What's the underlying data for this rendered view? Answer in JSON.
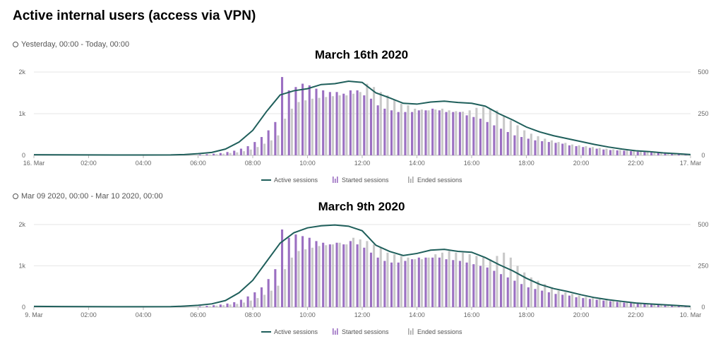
{
  "title": "Active internal users (access via VPN)",
  "legend": {
    "active": "Active sessions",
    "started": "Started sessions",
    "ended": "Ended sessions"
  },
  "colors": {
    "active": "#1f5f5b",
    "started": "#9b6fc2",
    "ended": "#c9c9c9",
    "grid": "#e6e6e6"
  },
  "chart_data": [
    {
      "type": "bar",
      "range_label": "Yesterday, 00:00 - Today, 00:00",
      "title": "March 16th 2020",
      "x_ticks": [
        "16. Mar",
        "02:00",
        "04:00",
        "06:00",
        "08:00",
        "10:00",
        "12:00",
        "14:00",
        "16:00",
        "18:00",
        "20:00",
        "22:00",
        "17. Mar"
      ],
      "y_left_ticks": [
        "0",
        "1k",
        "2k"
      ],
      "y_right_ticks": [
        "0",
        "250",
        "500"
      ],
      "ylim_left": [
        0,
        2000
      ],
      "ylim_right": [
        0,
        500
      ],
      "hours": [
        6,
        6.25,
        6.5,
        6.75,
        7,
        7.25,
        7.5,
        7.75,
        8,
        8.25,
        8.5,
        8.75,
        9,
        9.25,
        9.5,
        9.75,
        10,
        10.25,
        10.5,
        10.75,
        11,
        11.25,
        11.5,
        11.75,
        12,
        12.25,
        12.5,
        12.75,
        13,
        13.25,
        13.5,
        13.75,
        14,
        14.25,
        14.5,
        14.75,
        15,
        15.25,
        15.5,
        15.75,
        16,
        16.25,
        16.5,
        16.75,
        17,
        17.25,
        17.5,
        17.75,
        18,
        18.25,
        18.5,
        18.75,
        19,
        19.25,
        19.5,
        19.75,
        20,
        20.25,
        20.5,
        20.75,
        21,
        21.25,
        21.5,
        21.75,
        22,
        22.25,
        22.5,
        22.75,
        23,
        23.25,
        23.5,
        23.75
      ],
      "series": [
        {
          "name": "Active sessions",
          "axis": "left",
          "x": [
            0,
            1,
            2,
            3,
            4,
            5,
            5.5,
            6,
            6.5,
            7,
            7.5,
            8,
            8.5,
            9,
            9.5,
            10,
            10.5,
            11,
            11.5,
            12,
            12.5,
            13,
            13.5,
            14,
            14.5,
            15,
            15.5,
            16,
            16.5,
            17,
            17.5,
            18,
            18.5,
            19,
            19.5,
            20,
            20.5,
            21,
            21.5,
            22,
            22.5,
            23,
            23.5,
            24
          ],
          "values": [
            15,
            12,
            10,
            8,
            8,
            10,
            20,
            40,
            70,
            150,
            320,
            600,
            1050,
            1450,
            1550,
            1600,
            1700,
            1720,
            1780,
            1750,
            1500,
            1380,
            1250,
            1230,
            1280,
            1300,
            1270,
            1250,
            1180,
            1000,
            850,
            680,
            560,
            470,
            400,
            330,
            260,
            200,
            150,
            110,
            90,
            60,
            40,
            20
          ]
        },
        {
          "name": "Started sessions",
          "axis": "right",
          "values": [
            5,
            7,
            10,
            14,
            20,
            28,
            40,
            55,
            80,
            110,
            150,
            200,
            470,
            390,
            410,
            430,
            420,
            400,
            390,
            380,
            380,
            370,
            390,
            390,
            360,
            340,
            300,
            280,
            270,
            260,
            260,
            260,
            270,
            270,
            280,
            270,
            260,
            260,
            260,
            240,
            230,
            220,
            200,
            180,
            160,
            140,
            120,
            110,
            100,
            90,
            85,
            80,
            75,
            70,
            60,
            55,
            50,
            45,
            40,
            35,
            32,
            30,
            28,
            25,
            22,
            20,
            18,
            16,
            14,
            12,
            10,
            8
          ]
        },
        {
          "name": "Ended sessions",
          "axis": "right",
          "values": [
            4,
            5,
            7,
            10,
            14,
            18,
            25,
            35,
            50,
            70,
            90,
            120,
            220,
            280,
            320,
            330,
            340,
            345,
            350,
            355,
            360,
            360,
            370,
            380,
            430,
            410,
            380,
            360,
            330,
            310,
            300,
            280,
            275,
            270,
            275,
            280,
            270,
            265,
            262,
            270,
            285,
            290,
            280,
            270,
            240,
            210,
            180,
            150,
            130,
            115,
            100,
            90,
            80,
            75,
            65,
            60,
            55,
            50,
            45,
            40,
            36,
            32,
            30,
            27,
            24,
            21,
            19,
            17,
            15,
            13,
            11,
            9
          ]
        }
      ]
    },
    {
      "type": "bar",
      "range_label": "Mar 09 2020, 00:00 - Mar 10 2020, 00:00",
      "title": "March 9th 2020",
      "x_ticks": [
        "9. Mar",
        "02:00",
        "04:00",
        "06:00",
        "08:00",
        "10:00",
        "12:00",
        "14:00",
        "16:00",
        "18:00",
        "20:00",
        "22:00",
        "10. Mar"
      ],
      "y_left_ticks": [
        "0",
        "1k",
        "2k"
      ],
      "y_right_ticks": [
        "0",
        "250",
        "500"
      ],
      "ylim_left": [
        0,
        2000
      ],
      "ylim_right": [
        0,
        500
      ],
      "hours": [
        6,
        6.25,
        6.5,
        6.75,
        7,
        7.25,
        7.5,
        7.75,
        8,
        8.25,
        8.5,
        8.75,
        9,
        9.25,
        9.5,
        9.75,
        10,
        10.25,
        10.5,
        10.75,
        11,
        11.25,
        11.5,
        11.75,
        12,
        12.25,
        12.5,
        12.75,
        13,
        13.25,
        13.5,
        13.75,
        14,
        14.25,
        14.5,
        14.75,
        15,
        15.25,
        15.5,
        15.75,
        16,
        16.25,
        16.5,
        16.75,
        17,
        17.25,
        17.5,
        17.75,
        18,
        18.25,
        18.5,
        18.75,
        19,
        19.25,
        19.5,
        19.75,
        20,
        20.25,
        20.5,
        20.75,
        21,
        21.25,
        21.5,
        21.75,
        22,
        22.25,
        22.5,
        22.75,
        23,
        23.25,
        23.5,
        23.75
      ],
      "series": [
        {
          "name": "Active sessions",
          "axis": "left",
          "x": [
            0,
            1,
            2,
            3,
            4,
            5,
            5.5,
            6,
            6.5,
            7,
            7.5,
            8,
            8.5,
            9,
            9.5,
            10,
            10.5,
            11,
            11.5,
            12,
            12.5,
            13,
            13.5,
            14,
            14.5,
            15,
            15.5,
            16,
            16.5,
            17,
            17.5,
            18,
            18.5,
            19,
            19.5,
            20,
            20.5,
            21,
            21.5,
            22,
            22.5,
            23,
            23.5,
            24
          ],
          "values": [
            20,
            15,
            12,
            10,
            10,
            12,
            25,
            45,
            80,
            160,
            350,
            650,
            1100,
            1550,
            1800,
            1920,
            1970,
            1990,
            1960,
            1850,
            1500,
            1350,
            1250,
            1300,
            1380,
            1400,
            1350,
            1330,
            1200,
            1030,
            880,
            700,
            550,
            450,
            380,
            300,
            230,
            180,
            140,
            100,
            80,
            60,
            40,
            20
          ]
        },
        {
          "name": "Started sessions",
          "axis": "right",
          "values": [
            5,
            8,
            12,
            16,
            22,
            30,
            45,
            65,
            90,
            120,
            170,
            230,
            470,
            420,
            440,
            430,
            420,
            400,
            390,
            380,
            390,
            380,
            400,
            380,
            360,
            330,
            300,
            280,
            270,
            270,
            280,
            290,
            300,
            300,
            300,
            300,
            290,
            285,
            280,
            270,
            260,
            250,
            240,
            220,
            200,
            180,
            160,
            140,
            120,
            110,
            100,
            90,
            80,
            75,
            70,
            60,
            55,
            50,
            45,
            40,
            36,
            32,
            28,
            25,
            22,
            20,
            18,
            16,
            14,
            12,
            10,
            8
          ]
        },
        {
          "name": "Ended sessions",
          "axis": "right",
          "values": [
            4,
            6,
            9,
            12,
            16,
            20,
            28,
            40,
            55,
            75,
            100,
            130,
            230,
            300,
            340,
            350,
            360,
            370,
            375,
            380,
            390,
            380,
            420,
            410,
            400,
            380,
            360,
            330,
            320,
            310,
            300,
            290,
            290,
            300,
            320,
            330,
            340,
            330,
            330,
            320,
            310,
            300,
            290,
            310,
            330,
            300,
            250,
            210,
            180,
            160,
            140,
            120,
            100,
            90,
            80,
            70,
            62,
            55,
            50,
            45,
            40,
            36,
            32,
            28,
            25,
            22,
            20,
            18,
            16,
            14,
            12,
            10
          ]
        }
      ]
    }
  ]
}
